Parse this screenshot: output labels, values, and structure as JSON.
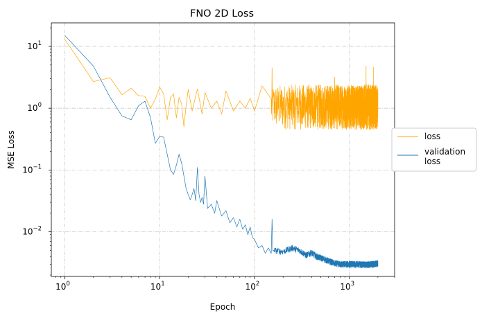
{
  "chart_data": {
    "type": "line",
    "title": "FNO 2D Loss",
    "xlabel": "Epoch",
    "ylabel": "MSE Loss",
    "xscale": "log",
    "yscale": "log",
    "xlim": [
      0.72,
      3000
    ],
    "ylim": [
      0.0019,
      24
    ],
    "xticks": [
      {
        "value": 1,
        "mant": "10",
        "exp": "0"
      },
      {
        "value": 10,
        "mant": "10",
        "exp": "1"
      },
      {
        "value": 100,
        "mant": "10",
        "exp": "2"
      },
      {
        "value": 1000,
        "mant": "10",
        "exp": "3"
      }
    ],
    "yticks": [
      {
        "value": 0.01,
        "mant": "10",
        "exp": "−2"
      },
      {
        "value": 0.1,
        "mant": "10",
        "exp": "−1"
      },
      {
        "value": 1,
        "mant": "10",
        "exp": "0"
      },
      {
        "value": 10,
        "mant": "10",
        "exp": "1"
      }
    ],
    "grid": true,
    "legend_placement": "right-outside",
    "epochs": 2000,
    "series": [
      {
        "name": "loss",
        "color": "#ffa500",
        "points": [
          [
            1,
            13.0
          ],
          [
            2,
            2.7
          ],
          [
            3,
            3.1
          ],
          [
            4,
            1.65
          ],
          [
            5,
            2.1
          ],
          [
            6,
            1.6
          ],
          [
            7,
            1.55
          ],
          [
            8,
            1.0
          ],
          [
            9,
            1.4
          ],
          [
            10,
            2.2
          ],
          [
            11,
            1.7
          ],
          [
            12,
            0.65
          ],
          [
            13,
            1.5
          ],
          [
            14,
            1.7
          ],
          [
            15,
            0.7
          ],
          [
            16,
            1.5
          ],
          [
            17,
            1.2
          ],
          [
            18,
            0.5
          ],
          [
            19,
            1.1
          ],
          [
            20,
            2.0
          ],
          [
            22,
            0.9
          ],
          [
            25,
            2.05
          ],
          [
            28,
            0.8
          ],
          [
            30,
            1.8
          ],
          [
            35,
            1.0
          ],
          [
            40,
            1.3
          ],
          [
            45,
            0.8
          ],
          [
            50,
            1.9
          ],
          [
            60,
            0.9
          ],
          [
            70,
            1.3
          ],
          [
            80,
            1.0
          ],
          [
            90,
            1.45
          ],
          [
            100,
            0.9
          ],
          [
            120,
            2.3
          ],
          [
            150,
            1.1
          ]
        ],
        "noise": {
          "from": 150,
          "to": 2000,
          "center": 1.2,
          "low": 0.45,
          "high": 2.4,
          "spikes": [
            [
              153,
              4.5
            ],
            [
              700,
              3.2
            ],
            [
              1500,
              4.8
            ],
            [
              1800,
              4.6
            ]
          ]
        }
      },
      {
        "name": "validation\nloss",
        "color": "#1f77b4",
        "points": [
          [
            1,
            15.0
          ],
          [
            2,
            4.8
          ],
          [
            3,
            1.5
          ],
          [
            4,
            0.75
          ],
          [
            5,
            0.65
          ],
          [
            6,
            1.1
          ],
          [
            7,
            1.3
          ],
          [
            8,
            0.7
          ],
          [
            9,
            0.27
          ],
          [
            10,
            0.35
          ],
          [
            11,
            0.34
          ],
          [
            12,
            0.18
          ],
          [
            13,
            0.1
          ],
          [
            14,
            0.085
          ],
          [
            15,
            0.12
          ],
          [
            16,
            0.18
          ],
          [
            17,
            0.13
          ],
          [
            18,
            0.08
          ],
          [
            19,
            0.05
          ],
          [
            20,
            0.04
          ],
          [
            21,
            0.033
          ],
          [
            22,
            0.04
          ],
          [
            23,
            0.05
          ],
          [
            24,
            0.032
          ],
          [
            25,
            0.11
          ],
          [
            26,
            0.04
          ],
          [
            27,
            0.03
          ],
          [
            28,
            0.036
          ],
          [
            29,
            0.028
          ],
          [
            30,
            0.08
          ],
          [
            32,
            0.024
          ],
          [
            35,
            0.028
          ],
          [
            38,
            0.02
          ],
          [
            40,
            0.032
          ],
          [
            45,
            0.018
          ],
          [
            50,
            0.022
          ],
          [
            55,
            0.014
          ],
          [
            60,
            0.017
          ],
          [
            65,
            0.012
          ],
          [
            70,
            0.016
          ],
          [
            75,
            0.011
          ],
          [
            80,
            0.013
          ],
          [
            85,
            0.009
          ],
          [
            90,
            0.012
          ],
          [
            95,
            0.008
          ],
          [
            100,
            0.0075
          ],
          [
            110,
            0.0055
          ],
          [
            120,
            0.006
          ],
          [
            130,
            0.0045
          ],
          [
            140,
            0.0055
          ],
          [
            150,
            0.0045
          ],
          [
            153,
            0.016
          ],
          [
            156,
            0.005
          ],
          [
            160,
            0.005
          ],
          [
            200,
            0.0048
          ],
          [
            250,
            0.0055
          ],
          [
            300,
            0.005
          ],
          [
            350,
            0.0042
          ],
          [
            400,
            0.0046
          ],
          [
            450,
            0.004
          ],
          [
            500,
            0.0038
          ],
          [
            600,
            0.0034
          ],
          [
            700,
            0.0031
          ],
          [
            800,
            0.003
          ],
          [
            1000,
            0.003
          ],
          [
            1200,
            0.003
          ],
          [
            1500,
            0.00295
          ],
          [
            1800,
            0.003
          ],
          [
            2000,
            0.0031
          ]
        ],
        "noise": {
          "from": 160,
          "to": 2000,
          "relative": 0.12
        }
      }
    ]
  }
}
